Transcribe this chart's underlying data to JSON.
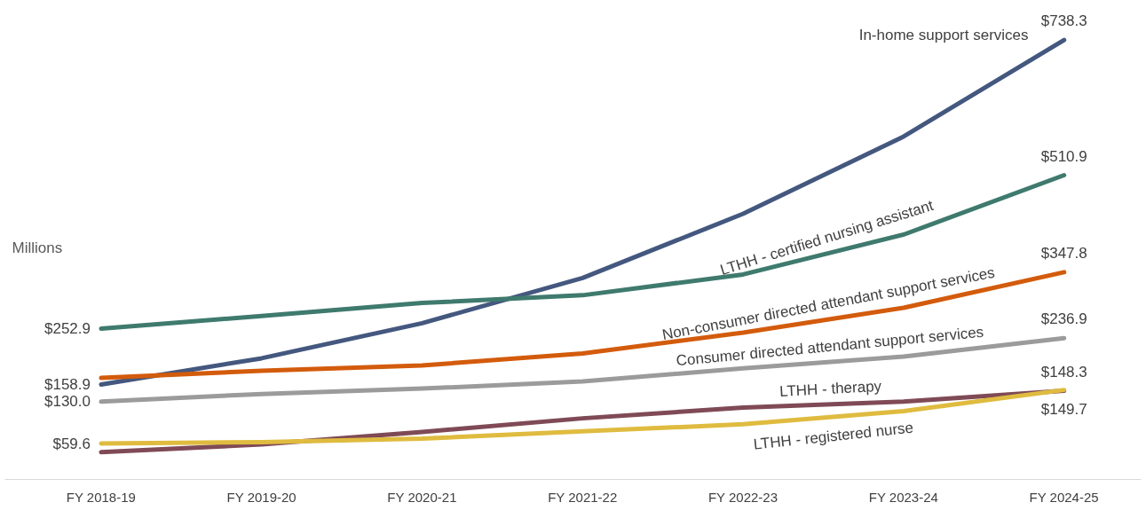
{
  "chart_data": {
    "type": "line",
    "ylabel": "Millions",
    "categories": [
      "FY 2018-19",
      "FY 2019-20",
      "FY 2020-21",
      "FY 2021-22",
      "FY 2022-23",
      "FY 2023-24",
      "FY 2024-25"
    ],
    "tick_labels": "x",
    "grid": false,
    "marker": "none",
    "line_style": "solid",
    "series": [
      {
        "name": "In-home support services",
        "color": "#44587f",
        "values": [
          158.9,
          203,
          262,
          338,
          446,
          576,
          738.3
        ],
        "value_labels": [
          "$158.9",
          null,
          null,
          null,
          null,
          null,
          "$738.3"
        ]
      },
      {
        "name": "LTHH - certified nursing assistant",
        "color": "#3f7a6e",
        "values": [
          252.9,
          274,
          296,
          309,
          344,
          411,
          510.9
        ],
        "value_labels": [
          "$252.9",
          null,
          null,
          null,
          null,
          null,
          "$510.9"
        ]
      },
      {
        "name": "Non-consumer directed attendant support services",
        "color": "#d35b0c",
        "values": [
          170,
          182,
          191,
          211,
          246,
          288,
          347.8
        ],
        "value_labels": [
          null,
          null,
          null,
          null,
          null,
          null,
          "$347.8"
        ]
      },
      {
        "name": "Consumer directed attendant support services",
        "color": "#9b9b9b",
        "values": [
          130.0,
          143,
          152,
          164,
          186,
          206,
          236.9
        ],
        "value_labels": [
          "$130.0",
          null,
          null,
          null,
          null,
          null,
          "$236.9"
        ]
      },
      {
        "name": "LTHH - therapy",
        "color": "#7f4a56",
        "values": [
          45,
          58,
          79,
          102,
          120,
          130,
          148.3
        ],
        "value_labels": [
          null,
          null,
          null,
          null,
          null,
          null,
          "$148.3"
        ]
      },
      {
        "name": "LTHH - registered nurse",
        "color": "#dfbb3f",
        "values": [
          59.6,
          62,
          68,
          80,
          92,
          114,
          149.7
        ],
        "value_labels": [
          "$59.6",
          null,
          null,
          null,
          null,
          null,
          "$149.7"
        ]
      }
    ]
  }
}
